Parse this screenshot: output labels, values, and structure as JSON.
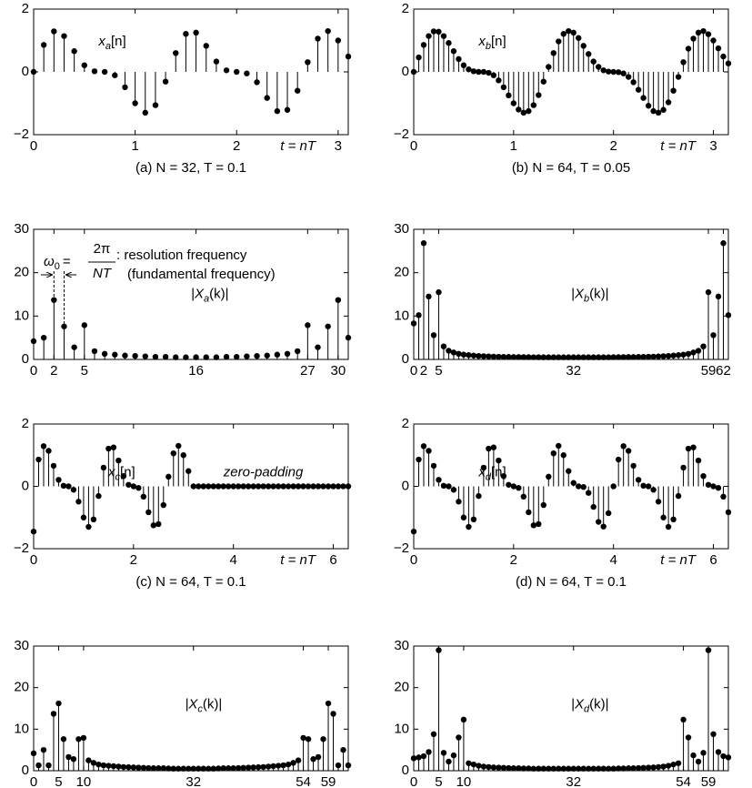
{
  "chart_data": [
    {
      "type": "stem",
      "color": "#000000",
      "x": [
        0,
        0.1,
        0.2,
        0.3,
        0.4,
        0.5,
        0.6,
        0.7,
        0.8,
        0.9,
        1,
        1.1,
        1.2,
        1.3,
        1.4,
        1.5,
        1.6,
        1.7,
        1.8,
        1.9,
        2,
        2.1,
        2.2,
        2.3,
        2.4,
        2.5,
        2.6,
        2.7,
        2.8,
        2.9,
        3,
        3.1
      ],
      "values": [
        0,
        0.86,
        1.29,
        1.14,
        0.66,
        0.21,
        0.02,
        0,
        -0.11,
        -0.49,
        -1,
        -1.3,
        -1.06,
        -0.31,
        0.6,
        1.21,
        1.25,
        0.83,
        0.33,
        0.05,
        0,
        -0.05,
        -0.33,
        -0.83,
        -1.25,
        -1.21,
        -0.6,
        0.31,
        1.06,
        1.3,
        1,
        0.49
      ],
      "xlim": [
        0,
        3.1
      ],
      "ylim": [
        -2,
        2
      ],
      "xticks": [
        0,
        1,
        2,
        3
      ],
      "yticks": [
        {
          "value": -2,
          "label": "−2"
        },
        0,
        2
      ],
      "label": {
        "base": "x",
        "sub": "a",
        "tail": "[n]"
      },
      "axis_note": "t = nT",
      "caption": "(a) N = 32, T = 0.1"
    },
    {
      "type": "stem",
      "color": "#000000",
      "x": [
        0,
        0.05,
        0.1,
        0.15,
        0.2,
        0.25,
        0.3,
        0.35,
        0.4,
        0.45,
        0.5,
        0.55,
        0.6,
        0.65,
        0.7,
        0.75,
        0.8,
        0.85,
        0.9,
        0.95,
        1,
        1.05,
        1.1,
        1.15,
        1.2,
        1.25,
        1.3,
        1.35,
        1.4,
        1.45,
        1.5,
        1.55,
        1.6,
        1.65,
        1.7,
        1.75,
        1.8,
        1.85,
        1.9,
        1.95,
        2,
        2.05,
        2.1,
        2.15,
        2.2,
        2.25,
        2.3,
        2.35,
        2.4,
        2.45,
        2.5,
        2.55,
        2.6,
        2.65,
        2.7,
        2.75,
        2.8,
        2.85,
        2.9,
        2.95,
        3,
        3.05,
        3.1,
        3.15
      ],
      "values": [
        0,
        0.46,
        0.86,
        1.14,
        1.29,
        1.28,
        1.14,
        0.92,
        0.66,
        0.41,
        0.21,
        0.08,
        0.02,
        0,
        0,
        -0.03,
        -0.11,
        -0.27,
        -0.49,
        -0.75,
        -1,
        -1.2,
        -1.3,
        -1.25,
        -1.06,
        -0.74,
        -0.31,
        0.16,
        0.6,
        0.97,
        1.21,
        1.3,
        1.25,
        1.08,
        0.83,
        0.57,
        0.33,
        0.16,
        0.05,
        0.01,
        0,
        -0.01,
        -0.05,
        -0.16,
        -0.33,
        -0.57,
        -0.83,
        -1.08,
        -1.25,
        -1.3,
        -1.21,
        -0.97,
        -0.6,
        -0.16,
        0.31,
        0.74,
        1.06,
        1.25,
        1.3,
        1.2,
        1,
        0.75,
        0.49,
        0.27
      ],
      "xlim": [
        0,
        3.15
      ],
      "ylim": [
        -2,
        2
      ],
      "xticks": [
        0,
        1,
        2,
        3
      ],
      "yticks": [
        {
          "value": -2,
          "label": "−2"
        },
        0,
        2
      ],
      "label": {
        "base": "x",
        "sub": "b",
        "tail": "[n]"
      },
      "axis_note": "t = nT",
      "caption": "(b) N = 64, T = 0.05"
    },
    {
      "type": "stem",
      "color": "#000000",
      "x": [
        0,
        1,
        2,
        3,
        4,
        5,
        6,
        7,
        8,
        9,
        10,
        11,
        12,
        13,
        14,
        15,
        16,
        17,
        18,
        19,
        20,
        21,
        22,
        23,
        24,
        25,
        26,
        27,
        28,
        29,
        30,
        31
      ],
      "values": [
        4.2,
        5,
        13.7,
        7.6,
        2.8,
        7.9,
        1.9,
        1.3,
        1.1,
        0.9,
        0.8,
        0.7,
        0.6,
        0.6,
        0.5,
        0.5,
        0.5,
        0.5,
        0.5,
        0.6,
        0.6,
        0.7,
        0.8,
        0.9,
        1.1,
        1.3,
        1.9,
        7.9,
        2.8,
        7.6,
        13.7,
        5
      ],
      "xlim": [
        0,
        31
      ],
      "ylim": [
        0,
        30
      ],
      "xticks": [
        0,
        2,
        5,
        16,
        27,
        30
      ],
      "yticks": [
        0,
        10,
        20,
        30
      ],
      "label": {
        "base": "|X",
        "sub": "a",
        "tail": "(k)|"
      },
      "resolution_note": {
        "symbol": "ω",
        "symbol_sub": "0",
        "equals": "=",
        "numerator": "2π",
        "denominator": "NT",
        "line1": ": resolution frequency",
        "line2": "(fundamental frequency)"
      }
    },
    {
      "type": "stem",
      "color": "#000000",
      "x": [
        0,
        1,
        2,
        3,
        4,
        5,
        6,
        7,
        8,
        9,
        10,
        11,
        12,
        13,
        14,
        15,
        16,
        17,
        18,
        19,
        20,
        21,
        22,
        23,
        24,
        25,
        26,
        27,
        28,
        29,
        30,
        31,
        32,
        33,
        34,
        35,
        36,
        37,
        38,
        39,
        40,
        41,
        42,
        43,
        44,
        45,
        46,
        47,
        48,
        49,
        50,
        51,
        52,
        53,
        54,
        55,
        56,
        57,
        58,
        59,
        60,
        61,
        62,
        63
      ],
      "values": [
        8.3,
        10.2,
        26.8,
        14.5,
        5.6,
        15.5,
        3,
        2,
        1.6,
        1.3,
        1.1,
        1,
        0.9,
        0.8,
        0.75,
        0.7,
        0.65,
        0.62,
        0.6,
        0.58,
        0.56,
        0.55,
        0.54,
        0.53,
        0.52,
        0.51,
        0.5,
        0.5,
        0.5,
        0.5,
        0.5,
        0.5,
        0.5,
        0.5,
        0.5,
        0.5,
        0.5,
        0.5,
        0.5,
        0.51,
        0.52,
        0.53,
        0.54,
        0.55,
        0.56,
        0.58,
        0.6,
        0.62,
        0.65,
        0.7,
        0.75,
        0.8,
        0.9,
        1,
        1.1,
        1.3,
        1.6,
        2,
        3,
        15.5,
        5.6,
        14.5,
        26.8,
        10.2
      ],
      "xlim": [
        0,
        63
      ],
      "ylim": [
        0,
        30
      ],
      "xticks": [
        0,
        2,
        5,
        32,
        59,
        62
      ],
      "yticks": [
        0,
        10,
        20,
        30
      ],
      "label": {
        "base": "|X",
        "sub": "b",
        "tail": "(k)|"
      }
    },
    {
      "type": "stem",
      "color": "#000000",
      "x": [
        0,
        0.1,
        0.2,
        0.3,
        0.4,
        0.5,
        0.6,
        0.7,
        0.8,
        0.9,
        1,
        1.1,
        1.2,
        1.3,
        1.4,
        1.5,
        1.6,
        1.7,
        1.8,
        1.9,
        2,
        2.1,
        2.2,
        2.3,
        2.4,
        2.5,
        2.6,
        2.7,
        2.8,
        2.9,
        3,
        3.1,
        3.2,
        3.3,
        3.4,
        3.5,
        3.6,
        3.7,
        3.8,
        3.9,
        4,
        4.1,
        4.2,
        4.3,
        4.4,
        4.5,
        4.6,
        4.7,
        4.8,
        4.9,
        5,
        5.1,
        5.2,
        5.3,
        5.4,
        5.5,
        5.6,
        5.7,
        5.8,
        5.9,
        6,
        6.1,
        6.2,
        6.3
      ],
      "values": [
        -1.45,
        0.86,
        1.29,
        1.14,
        0.66,
        0.21,
        0.02,
        0,
        -0.11,
        -0.49,
        -1,
        -1.3,
        -1.06,
        -0.31,
        0.6,
        1.21,
        1.25,
        0.83,
        0.33,
        0.05,
        0,
        -0.05,
        -0.33,
        -0.83,
        -1.25,
        -1.21,
        -0.6,
        0.31,
        1.06,
        1.3,
        1,
        0.49,
        0,
        0,
        0,
        0,
        0,
        0,
        0,
        0,
        0,
        0,
        0,
        0,
        0,
        0,
        0,
        0,
        0,
        0,
        0,
        0,
        0,
        0,
        0,
        0,
        0,
        0,
        0,
        0,
        0,
        0,
        0,
        0
      ],
      "xlim": [
        0,
        6.3
      ],
      "ylim": [
        -2,
        2
      ],
      "xticks": [
        0,
        2,
        4,
        6
      ],
      "yticks": [
        {
          "value": -2,
          "label": "−2"
        },
        0,
        2
      ],
      "label": {
        "base": "x",
        "sub": "c",
        "tail": "[n]"
      },
      "annotation": "zero-padding",
      "axis_note": "t = nT",
      "caption": "(c) N = 64, T = 0.1"
    },
    {
      "type": "stem",
      "color": "#000000",
      "x": [
        0,
        0.1,
        0.2,
        0.3,
        0.4,
        0.5,
        0.6,
        0.7,
        0.8,
        0.9,
        1,
        1.1,
        1.2,
        1.3,
        1.4,
        1.5,
        1.6,
        1.7,
        1.8,
        1.9,
        2,
        2.1,
        2.2,
        2.3,
        2.4,
        2.5,
        2.6,
        2.7,
        2.8,
        2.9,
        3,
        3.1,
        3.2,
        3.3,
        3.4,
        3.5,
        3.6,
        3.7,
        3.8,
        3.9,
        4,
        4.1,
        4.2,
        4.3,
        4.4,
        4.5,
        4.6,
        4.7,
        4.8,
        4.9,
        5,
        5.1,
        5.2,
        5.3,
        5.4,
        5.5,
        5.6,
        5.7,
        5.8,
        5.9,
        6,
        6.1,
        6.2,
        6.3
      ],
      "values": [
        -1.45,
        0.86,
        1.29,
        1.14,
        0.66,
        0.21,
        0.02,
        0,
        -0.11,
        -0.49,
        -1,
        -1.3,
        -1.06,
        -0.31,
        0.6,
        1.21,
        1.25,
        0.83,
        0.33,
        0.05,
        0,
        -0.05,
        -0.33,
        -0.83,
        -1.25,
        -1.21,
        -0.6,
        0.31,
        1.06,
        1.3,
        1,
        0.49,
        0.11,
        0,
        -0.02,
        -0.21,
        -0.66,
        -1.14,
        -1.29,
        -0.86,
        0,
        0.86,
        1.29,
        1.14,
        0.66,
        0.21,
        0.02,
        0,
        -0.11,
        -0.49,
        -1,
        -1.3,
        -1.06,
        -0.31,
        0.6,
        1.21,
        1.25,
        0.83,
        0.33,
        0.05,
        0,
        -0.05,
        -0.33,
        -0.83
      ],
      "xlim": [
        0,
        6.3
      ],
      "ylim": [
        -2,
        2
      ],
      "xticks": [
        0,
        2,
        4,
        6
      ],
      "yticks": [
        {
          "value": -2,
          "label": "−2"
        },
        0,
        2
      ],
      "label": {
        "base": "x",
        "sub": "d",
        "tail": "[n]"
      },
      "axis_note": "t = nT",
      "caption": "(d) N = 64, T = 0.1"
    },
    {
      "type": "stem",
      "color": "#000000",
      "x": [
        0,
        1,
        2,
        3,
        4,
        5,
        6,
        7,
        8,
        9,
        10,
        11,
        12,
        13,
        14,
        15,
        16,
        17,
        18,
        19,
        20,
        21,
        22,
        23,
        24,
        25,
        26,
        27,
        28,
        29,
        30,
        31,
        32,
        33,
        34,
        35,
        36,
        37,
        38,
        39,
        40,
        41,
        42,
        43,
        44,
        45,
        46,
        47,
        48,
        49,
        50,
        51,
        52,
        53,
        54,
        55,
        56,
        57,
        58,
        59,
        60,
        61,
        62,
        63
      ],
      "values": [
        4.2,
        1.3,
        5,
        1.3,
        13.7,
        16.2,
        7.6,
        3.3,
        2.8,
        7.6,
        7.9,
        2.5,
        1.9,
        1.5,
        1.3,
        1.2,
        1.1,
        1,
        0.9,
        0.85,
        0.8,
        0.75,
        0.7,
        0.65,
        0.6,
        0.6,
        0.6,
        0.55,
        0.5,
        0.5,
        0.5,
        0.5,
        0.5,
        0.5,
        0.5,
        0.5,
        0.5,
        0.55,
        0.6,
        0.6,
        0.6,
        0.65,
        0.7,
        0.75,
        0.8,
        0.85,
        0.9,
        1,
        1.1,
        1.2,
        1.3,
        1.5,
        1.9,
        2.5,
        7.9,
        7.6,
        2.8,
        3.3,
        7.6,
        16.2,
        13.7,
        1.3,
        5,
        1.3
      ],
      "xlim": [
        0,
        63
      ],
      "ylim": [
        0,
        30
      ],
      "xticks": [
        0,
        5,
        10,
        32,
        54,
        59
      ],
      "yticks": [
        0,
        10,
        20,
        30
      ],
      "label": {
        "base": "|X",
        "sub": "c",
        "tail": "(k)|"
      }
    },
    {
      "type": "stem",
      "color": "#000000",
      "x": [
        0,
        1,
        2,
        3,
        4,
        5,
        6,
        7,
        8,
        9,
        10,
        11,
        12,
        13,
        14,
        15,
        16,
        17,
        18,
        19,
        20,
        21,
        22,
        23,
        24,
        25,
        26,
        27,
        28,
        29,
        30,
        31,
        32,
        33,
        34,
        35,
        36,
        37,
        38,
        39,
        40,
        41,
        42,
        43,
        44,
        45,
        46,
        47,
        48,
        49,
        50,
        51,
        52,
        53,
        54,
        55,
        56,
        57,
        58,
        59,
        60,
        61,
        62,
        63
      ],
      "values": [
        3,
        3.2,
        3.5,
        4.5,
        8.8,
        29,
        4.3,
        2.2,
        3.7,
        8,
        12.3,
        1.8,
        1.5,
        1.2,
        1,
        0.9,
        0.8,
        0.75,
        0.7,
        0.65,
        0.6,
        0.6,
        0.55,
        0.55,
        0.5,
        0.5,
        0.5,
        0.5,
        0.5,
        0.5,
        0.5,
        0.5,
        0.5,
        0.5,
        0.5,
        0.5,
        0.5,
        0.5,
        0.5,
        0.5,
        0.5,
        0.55,
        0.55,
        0.6,
        0.6,
        0.65,
        0.7,
        0.75,
        0.8,
        0.9,
        1,
        1.2,
        1.5,
        1.8,
        12.3,
        8,
        3.7,
        2.2,
        4.3,
        29,
        8.8,
        4.5,
        3.5,
        3.2
      ],
      "xlim": [
        0,
        63
      ],
      "ylim": [
        0,
        30
      ],
      "xticks": [
        0,
        5,
        10,
        32,
        54,
        59
      ],
      "yticks": [
        0,
        10,
        20,
        30
      ],
      "label": {
        "base": "|X",
        "sub": "d",
        "tail": "(k)|"
      }
    }
  ]
}
